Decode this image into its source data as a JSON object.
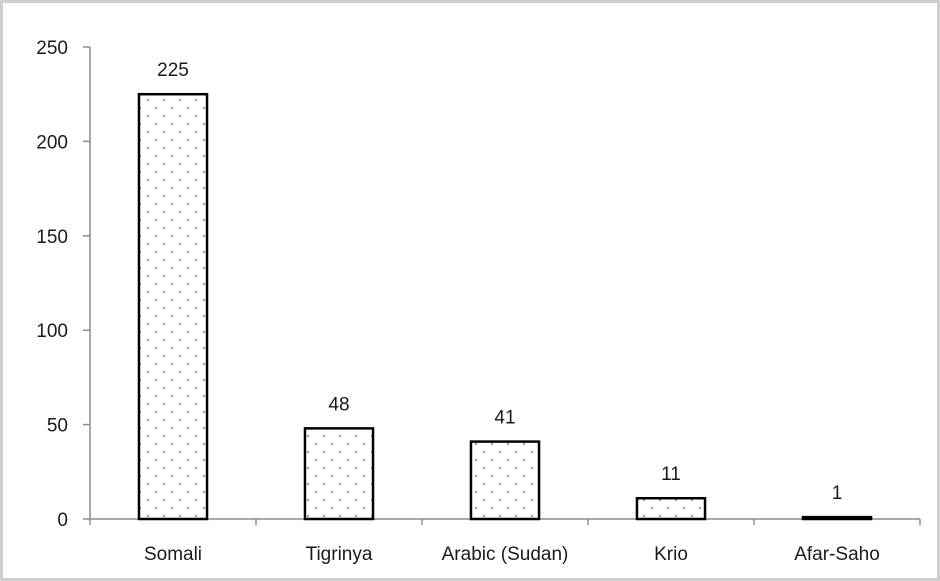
{
  "chart_data": {
    "type": "bar",
    "categories": [
      "Somali",
      "Tigrinya",
      "Arabic (Sudan)",
      "Krio",
      "Afar-Saho"
    ],
    "values": [
      225,
      48,
      41,
      11,
      1
    ],
    "data_labels": [
      "225",
      "48",
      "41",
      "11",
      "1"
    ],
    "title": "",
    "xlabel": "",
    "ylabel": "",
    "ylim": [
      0,
      250
    ],
    "yticks": [
      0,
      50,
      100,
      150,
      200,
      250
    ],
    "grid": false,
    "legend": "none",
    "bar_fill": "dotted",
    "colors": {
      "bar_fill": "#ffffff",
      "bar_dots": "#555555",
      "bar_edge": "#000000",
      "axis": "#8c8c8c",
      "frame": "#cfcfcf"
    }
  }
}
